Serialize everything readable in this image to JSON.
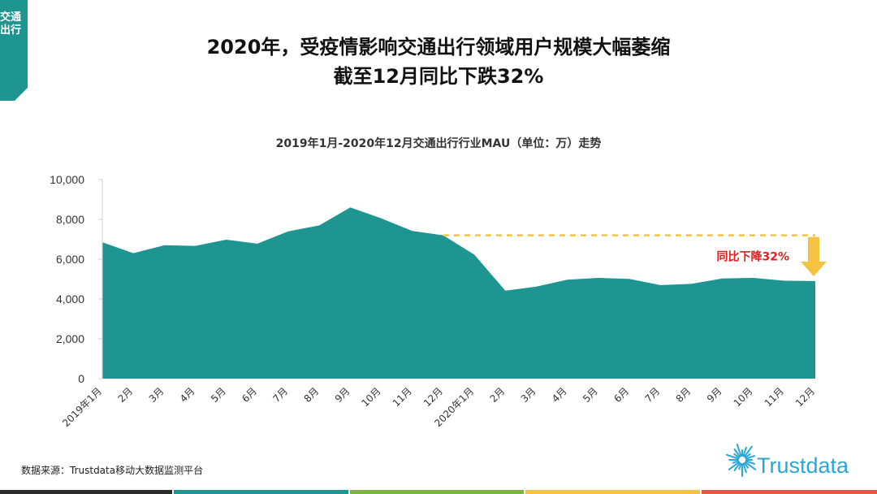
{
  "side_tab": {
    "label": "交通出行",
    "color": "#1e9590"
  },
  "header": {
    "title_line1": "2020年，受疫情影响交通出行领域用户规模大幅萎缩",
    "title_line2": "截至12月同比下跌32%"
  },
  "chart_data": {
    "type": "area",
    "title": "2019年1月-2020年12月交通出行行业MAU（单位：万）走势",
    "categories": [
      "2019年1月",
      "2月",
      "3月",
      "4月",
      "5月",
      "6月",
      "7月",
      "8月",
      "9月",
      "10月",
      "11月",
      "12月",
      "2020年1月",
      "2月",
      "3月",
      "4月",
      "5月",
      "6月",
      "7月",
      "8月",
      "9月",
      "10月",
      "11月",
      "12月"
    ],
    "values": [
      6850,
      6300,
      6700,
      6670,
      6980,
      6780,
      7400,
      7700,
      8600,
      8050,
      7420,
      7200,
      6230,
      4420,
      4620,
      4970,
      5060,
      5010,
      4700,
      4760,
      5030,
      5060,
      4920,
      4900
    ],
    "ylim": [
      0,
      10000
    ],
    "yticks": [
      0,
      2000,
      4000,
      6000,
      8000,
      10000
    ],
    "ytick_labels": [
      "0",
      "2,000",
      "4,000",
      "6,000",
      "8,000",
      "10,000"
    ],
    "fill_color": "#1e9590",
    "grid": false,
    "annotation": {
      "text": "同比下降32%",
      "color": "#e02020",
      "from_index": 11,
      "to_index": 23,
      "line_color": "#f5c242",
      "arrow_color": "#f5c242"
    }
  },
  "source": "数据来源：Trustdata移动大数据监测平台",
  "logo": {
    "text": "Trustdata",
    "color": "#2aa6d9"
  },
  "bottom_bar_colors": [
    "#2b2b2b",
    "#1e9590",
    "#7cb342",
    "#f5c242",
    "#e8574a"
  ]
}
